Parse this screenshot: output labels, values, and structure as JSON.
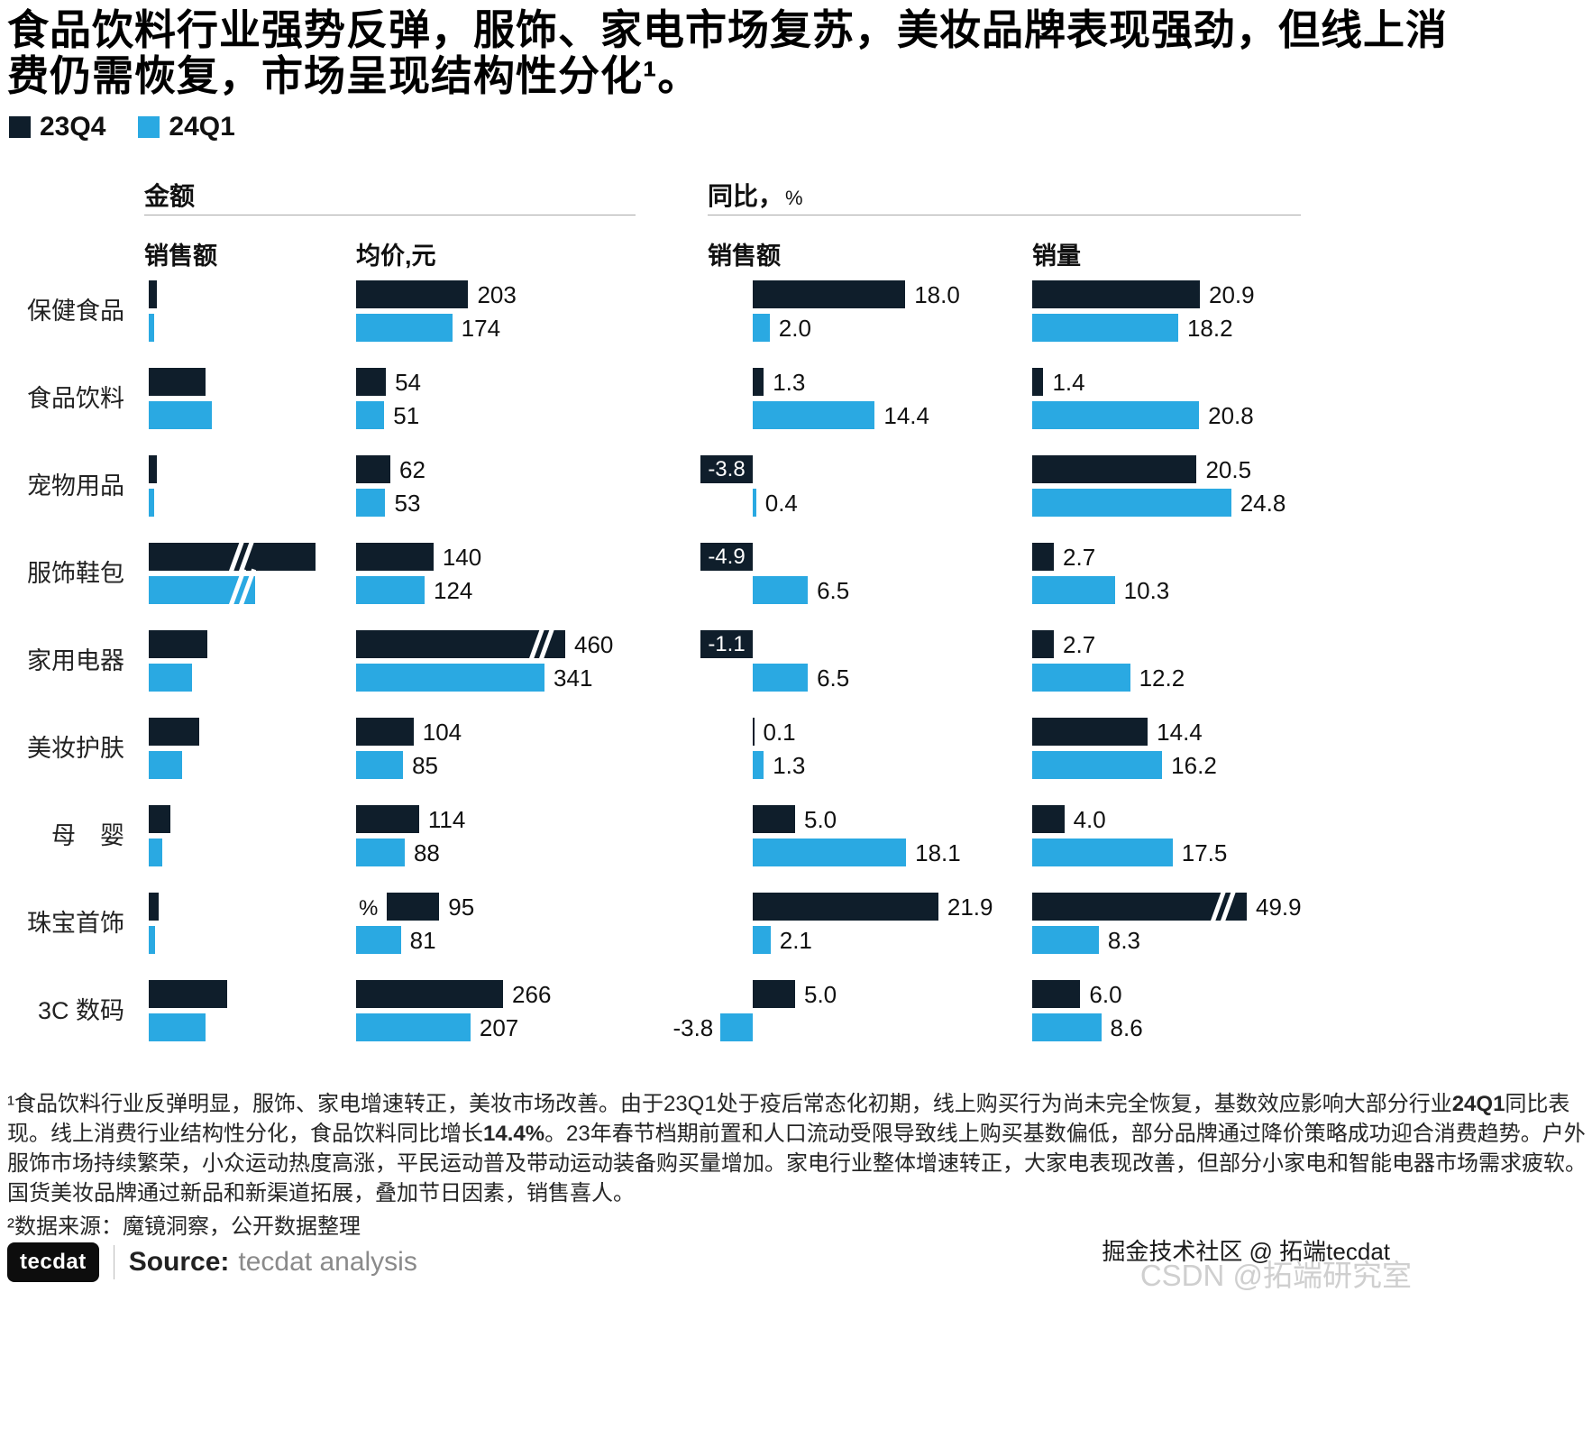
{
  "page": {
    "title": "食品饮料行业强势反弹，服饰、家电市场复苏，美妆品牌表现强劲，但线上消费仍需恢复，市场呈现结构性分化¹。",
    "legend": [
      {
        "label": "23Q4",
        "color": "#0f1e2b"
      },
      {
        "label": "24Q1",
        "color": "#2aa9e2"
      }
    ],
    "panels": [
      {
        "title": "金额",
        "suffix": ""
      },
      {
        "title": "同比，",
        "suffix": "%"
      }
    ],
    "column_headers": [
      "销售额",
      "均价,元",
      "销售额",
      "销量"
    ],
    "stray_percent": "%",
    "footnote1_segments": [
      {
        "text": "¹食品饮料行业反弹明显，服饰、家电增速转正，美妆市场改善。由于23Q1处于疫后常态化初期，线上购买行为尚未完全恢复，基数效应影响大部分行业",
        "bold": false
      },
      {
        "text": "24Q1",
        "bold": true
      },
      {
        "text": "同比表现。线上消费行业结构性分化，食品饮料同比增长",
        "bold": false
      },
      {
        "text": "14.4%",
        "bold": true
      },
      {
        "text": "。23年春节档期前置和人口流动受限导致线上购买基数偏低，部分品牌通过降价策略成功迎合消费趋势。户外服饰市场持续繁荣，小众运动热度高涨，平民运动普及带动运动装备购买量增加。家电行业整体增速转正，大家电表现改善，但部分小家电和智能电器市场需求疲软。国货美妆品牌通过新品和新渠道拓展，叠加节日因素，销售喜人。",
        "bold": false
      }
    ],
    "footnote2": "²数据来源：魔镜洞察，公开数据整理",
    "footer": {
      "logo": "tecdat",
      "source_label": "Source:",
      "source_value": "tecdat analysis"
    },
    "watermark1": "掘金技术社区 @ 拓端tecdat",
    "watermark2": "CSDN @拓端研究室"
  },
  "categories": [
    "保健食品",
    "食品饮料",
    "宠物用品",
    "服饰鞋包",
    "家用电器",
    "美妆护肤",
    "母　婴",
    "珠宝首饰",
    "3C 数码"
  ],
  "chart_data": [
    {
      "id": "sales_gmv",
      "panel": "金额",
      "title": "销售额",
      "type": "bar",
      "orientation": "horizontal",
      "value_labels_shown": false,
      "unit": "relative_estimate",
      "series": [
        {
          "name": "23Q4",
          "values": [
            5,
            34,
            5,
            100,
            35,
            30,
            13,
            6,
            47
          ]
        },
        {
          "name": "24Q1",
          "values": [
            3,
            38,
            3,
            64,
            26,
            20,
            8,
            4,
            34
          ]
        }
      ],
      "axis_breaks": [
        {
          "series": "23Q4",
          "category": "服饰鞋包"
        },
        {
          "series": "24Q1",
          "category": "服饰鞋包"
        }
      ]
    },
    {
      "id": "avg_price",
      "panel": "金额",
      "title": "均价,元",
      "type": "bar",
      "orientation": "horizontal",
      "value_labels_shown": true,
      "unit": "元",
      "series": [
        {
          "name": "23Q4",
          "values": [
            203,
            54,
            62,
            140,
            460,
            104,
            114,
            95,
            266
          ]
        },
        {
          "name": "24Q1",
          "values": [
            174,
            51,
            53,
            124,
            341,
            85,
            88,
            81,
            207
          ]
        }
      ],
      "axis_breaks": [
        {
          "series": "23Q4",
          "category": "家用电器"
        }
      ]
    },
    {
      "id": "yoy_gmv",
      "panel": "同比，%",
      "title": "销售额",
      "type": "bar",
      "orientation": "horizontal",
      "value_labels_shown": true,
      "unit": "%",
      "series": [
        {
          "name": "23Q4",
          "values": [
            18.0,
            1.3,
            -3.8,
            -4.9,
            -1.1,
            0.1,
            5.0,
            21.9,
            5.0
          ]
        },
        {
          "name": "24Q1",
          "values": [
            2.0,
            14.4,
            0.4,
            6.5,
            6.5,
            1.3,
            18.1,
            2.1,
            -3.8
          ]
        }
      ],
      "axis_breaks": []
    },
    {
      "id": "yoy_volume",
      "panel": "同比，%",
      "title": "销量",
      "type": "bar",
      "orientation": "horizontal",
      "value_labels_shown": true,
      "unit": "%",
      "series": [
        {
          "name": "23Q4",
          "values": [
            20.9,
            1.4,
            20.5,
            2.7,
            2.7,
            14.4,
            4.0,
            49.9,
            6.0
          ]
        },
        {
          "name": "24Q1",
          "values": [
            18.2,
            20.8,
            24.8,
            10.3,
            12.2,
            16.2,
            17.5,
            8.3,
            8.6
          ]
        }
      ],
      "axis_breaks": [
        {
          "series": "23Q4",
          "category": "珠宝首饰"
        }
      ]
    }
  ]
}
